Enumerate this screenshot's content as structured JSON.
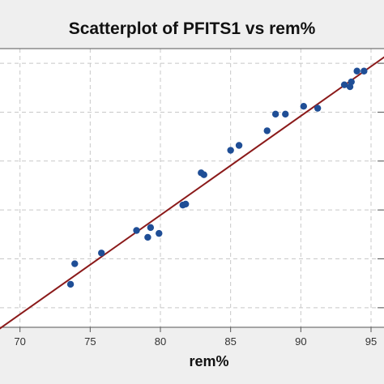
{
  "chart_data": {
    "type": "scatter",
    "title": "Scatterplot of PFITS1 vs rem%",
    "xlabel": "rem%",
    "ylabel": "",
    "xlim": [
      68.0,
      96.5
    ],
    "ylim": [
      68.0,
      96.5
    ],
    "x_ticks": [
      70,
      75,
      80,
      85,
      90,
      95
    ],
    "y_ticks": [
      70,
      75,
      80,
      85,
      90,
      95
    ],
    "grid": true,
    "series": [
      {
        "marker_color": "#1f4e96",
        "points": [
          [
            73.6,
            72.4
          ],
          [
            73.9,
            74.5
          ],
          [
            75.8,
            75.6
          ],
          [
            78.3,
            77.9
          ],
          [
            79.1,
            77.2
          ],
          [
            79.3,
            78.2
          ],
          [
            79.9,
            77.6
          ],
          [
            81.6,
            80.5
          ],
          [
            81.8,
            80.6
          ],
          [
            82.9,
            83.8
          ],
          [
            83.1,
            83.6
          ],
          [
            85.0,
            86.1
          ],
          [
            85.6,
            86.6
          ],
          [
            87.6,
            88.1
          ],
          [
            88.2,
            89.8
          ],
          [
            88.9,
            89.8
          ],
          [
            90.2,
            90.6
          ],
          [
            91.2,
            90.4
          ],
          [
            93.1,
            92.8
          ],
          [
            93.5,
            92.6
          ],
          [
            93.6,
            93.1
          ],
          [
            94.0,
            94.2
          ],
          [
            94.5,
            94.2
          ]
        ]
      }
    ],
    "fit_line": {
      "color": "#8b1a1a",
      "points": [
        [
          68.0,
          67.3
        ],
        [
          96.5,
          96.2
        ]
      ]
    }
  }
}
